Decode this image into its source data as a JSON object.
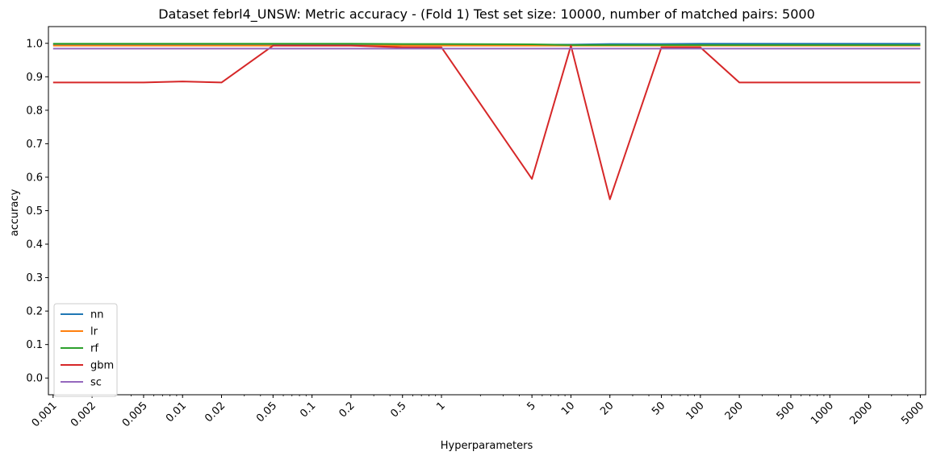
{
  "chart_data": {
    "type": "line",
    "title": "Dataset febrl4_UNSW: Metric accuracy - (Fold 1) Test set size: 10000, number of matched pairs: 5000",
    "xlabel": "Hyperparameters",
    "ylabel": "accuracy",
    "x_scale": "log",
    "xlim": [
      0.00092,
      5500
    ],
    "ylim": [
      -0.05,
      1.05
    ],
    "grid": false,
    "legend_position": "lower-left",
    "x": [
      0.001,
      0.002,
      0.005,
      0.01,
      0.02,
      0.05,
      0.1,
      0.2,
      0.5,
      1,
      5,
      10,
      20,
      50,
      100,
      200,
      500,
      1000,
      2000,
      5000
    ],
    "x_tick_labels": [
      "0.001",
      "0.002",
      "0.005",
      "0.01",
      "0.02",
      "0.05",
      "0.1",
      "0.2",
      "0.5",
      "1",
      "5",
      "10",
      "20",
      "50",
      "100",
      "200",
      "500",
      "1000",
      "2000",
      "5000"
    ],
    "y_ticks": [
      0.0,
      0.1,
      0.2,
      0.3,
      0.4,
      0.5,
      0.6,
      0.7,
      0.8,
      0.9,
      1.0
    ],
    "y_tick_labels": [
      "0.0",
      "0.1",
      "0.2",
      "0.3",
      "0.4",
      "0.5",
      "0.6",
      "0.7",
      "0.8",
      "0.9",
      "1.0"
    ],
    "series": [
      {
        "name": "nn",
        "color": "#1f77b4",
        "values": [
          0.996,
          0.996,
          0.996,
          0.996,
          0.996,
          0.996,
          0.996,
          0.996,
          0.996,
          0.996,
          0.996,
          0.996,
          0.998,
          0.998,
          0.999,
          0.999,
          0.999,
          0.999,
          0.999,
          0.999
        ]
      },
      {
        "name": "lr",
        "color": "#ff7f0e",
        "values": [
          0.993,
          0.993,
          0.993,
          0.993,
          0.993,
          0.993,
          0.993,
          0.993,
          0.993,
          0.993,
          0.993,
          0.993,
          0.993,
          0.993,
          0.993,
          0.993,
          0.993,
          0.993,
          0.993,
          0.993
        ]
      },
      {
        "name": "rf",
        "color": "#2ca02c",
        "values": [
          0.999,
          0.999,
          0.999,
          0.999,
          0.999,
          0.999,
          0.999,
          0.999,
          0.998,
          0.998,
          0.997,
          0.995,
          0.995,
          0.995,
          0.995,
          0.995,
          0.995,
          0.995,
          0.995,
          0.995
        ]
      },
      {
        "name": "gbm",
        "color": "#d62728",
        "values": [
          0.883,
          0.883,
          0.883,
          0.886,
          0.883,
          0.993,
          0.993,
          0.993,
          0.988,
          0.988,
          0.595,
          0.993,
          0.534,
          0.988,
          0.988,
          0.883,
          0.883,
          0.883,
          0.883,
          0.883
        ]
      },
      {
        "name": "sc",
        "color": "#9467bd",
        "values": [
          0.984,
          0.984,
          0.984,
          0.984,
          0.984,
          0.984,
          0.984,
          0.984,
          0.984,
          0.984,
          0.984,
          0.984,
          0.984,
          0.984,
          0.984,
          0.984,
          0.984,
          0.984,
          0.984,
          0.984
        ]
      }
    ]
  }
}
